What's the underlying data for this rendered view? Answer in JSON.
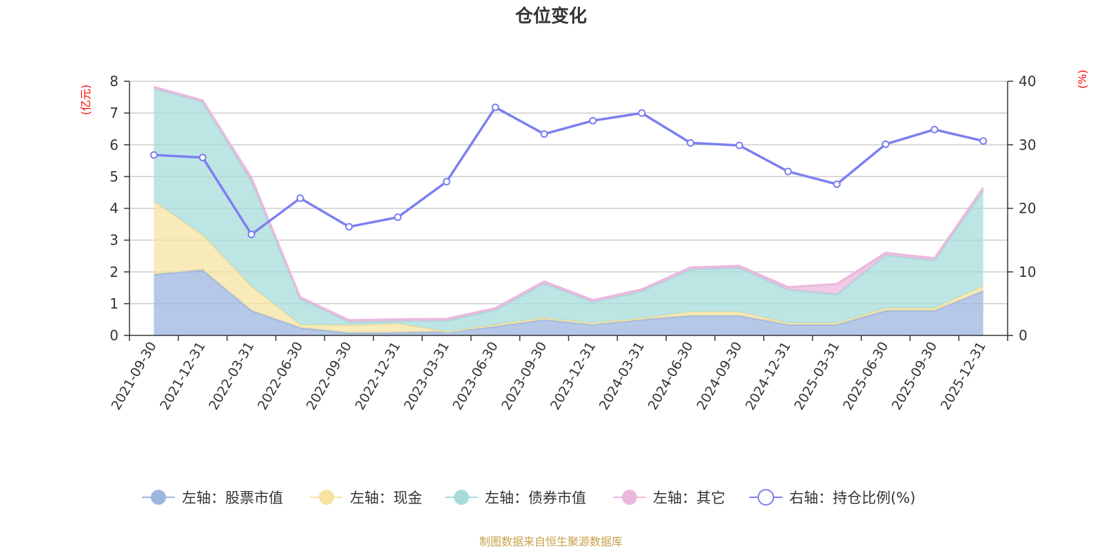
{
  "chart_data": {
    "type": "area",
    "title": "仓位变化",
    "left_axis_unit": "(亿元)",
    "right_axis_unit": "(%)",
    "left_ylim": [
      0,
      8
    ],
    "left_yticks": [
      0,
      1,
      2,
      3,
      4,
      5,
      6,
      7,
      8
    ],
    "right_ylim": [
      0,
      40
    ],
    "right_yticks": [
      0,
      10,
      20,
      30,
      40
    ],
    "categories": [
      "2021-09-30",
      "2021-12-31",
      "2022-03-31",
      "2022-06-30",
      "2022-09-30",
      "2022-12-31",
      "2023-03-31",
      "2023-06-30",
      "2023-09-30",
      "2023-12-31",
      "2024-03-31",
      "2024-06-30",
      "2024-09-30",
      "2024-12-31",
      "2025-03-31",
      "2025-06-30",
      "2025-09-30",
      "2025-12-31"
    ],
    "stacked_series": [
      {
        "name": "左轴：股票市值",
        "color": "#9db6e0",
        "values": [
          1.92,
          2.06,
          0.78,
          0.24,
          0.08,
          0.09,
          0.12,
          0.28,
          0.5,
          0.34,
          0.5,
          0.62,
          0.62,
          0.34,
          0.34,
          0.78,
          0.78,
          1.4
        ]
      },
      {
        "name": "左轴：现金",
        "color": "#f6e3a1",
        "values": [
          2.3,
          1.1,
          0.76,
          0.1,
          0.24,
          0.28,
          0.0,
          0.06,
          0.05,
          0.05,
          0.04,
          0.12,
          0.12,
          0.05,
          0.05,
          0.08,
          0.08,
          0.15
        ]
      },
      {
        "name": "左轴：债券市值",
        "color": "#a7dcdb",
        "values": [
          3.55,
          4.19,
          3.3,
          0.81,
          0.1,
          0.08,
          0.34,
          0.46,
          1.08,
          0.66,
          0.85,
          1.34,
          1.38,
          1.05,
          0.9,
          1.66,
          1.5,
          3.0
        ]
      },
      {
        "name": "左轴：其它",
        "color": "#ebb8dd",
        "values": [
          0.05,
          0.05,
          0.12,
          0.05,
          0.06,
          0.06,
          0.06,
          0.06,
          0.07,
          0.06,
          0.06,
          0.06,
          0.07,
          0.08,
          0.33,
          0.08,
          0.07,
          0.1
        ]
      }
    ],
    "line_series": {
      "name": "右轴：持仓比例(%)",
      "color": "#7b7ff0",
      "values": [
        28.4,
        28.0,
        15.9,
        21.6,
        17.1,
        18.6,
        24.2,
        35.9,
        31.7,
        33.8,
        35.0,
        30.3,
        29.9,
        25.8,
        23.8,
        30.1,
        32.4,
        30.6
      ]
    },
    "source": "制图数据来自恒生聚源数据库",
    "source_color": "#c8a04a"
  }
}
